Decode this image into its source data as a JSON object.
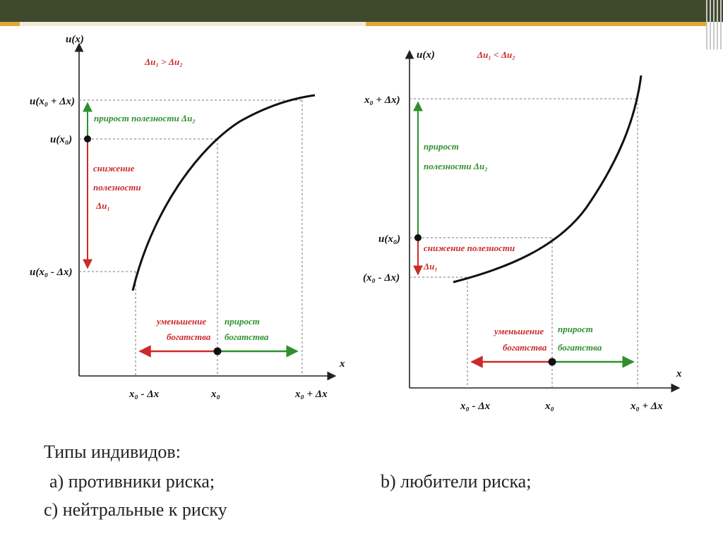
{
  "header": {
    "accent_dark": "#3f4a2c",
    "accent_orange": "#e2a73a"
  },
  "colors": {
    "increase": "#2f8f2f",
    "decrease": "#cc2a2a",
    "curve": "#111111"
  },
  "left": {
    "condition": "Δu₁ > Δu₂",
    "y_axis": "u(x)",
    "x_axis": "x",
    "y_ticks": {
      "top": "u(x₀ + Δx)",
      "mid": "u(x₀)",
      "low": "u(x₀ - Δx)"
    },
    "x_ticks": {
      "left": "x₀ - Δx",
      "mid": "x₀",
      "right": "x₀ + Δx"
    },
    "gain_utility": "прирост полезности Δu₂",
    "loss_utility": [
      "снижение",
      "полезности",
      "Δu₁"
    ],
    "wealth_loss": [
      "уменьшение",
      "богатства"
    ],
    "wealth_gain": [
      "прирост",
      "богатства"
    ]
  },
  "right": {
    "condition": "Δu₁ < Δu₂",
    "y_axis": "u(x)",
    "x_axis": "x",
    "y_ticks": {
      "top": "x₀ + Δx)",
      "mid": "u(x₀)",
      "low": "(x₀ - Δx)"
    },
    "x_ticks": {
      "left": "x₀ - Δx",
      "mid": "x₀",
      "right": "x₀ + Δx"
    },
    "gain_utility": [
      "прирост",
      "полезности Δu₂"
    ],
    "loss_utility": [
      "снижение полезности",
      "Δu₁"
    ],
    "wealth_loss": [
      "уменьшение",
      "богатства"
    ],
    "wealth_gain": [
      "прирост",
      "богатства"
    ]
  },
  "caption": {
    "title": "Типы индивидов:",
    "item_a": "а) противники риска;",
    "item_b": "b) любители риска;",
    "item_c": "с) нейтральные к риску"
  }
}
